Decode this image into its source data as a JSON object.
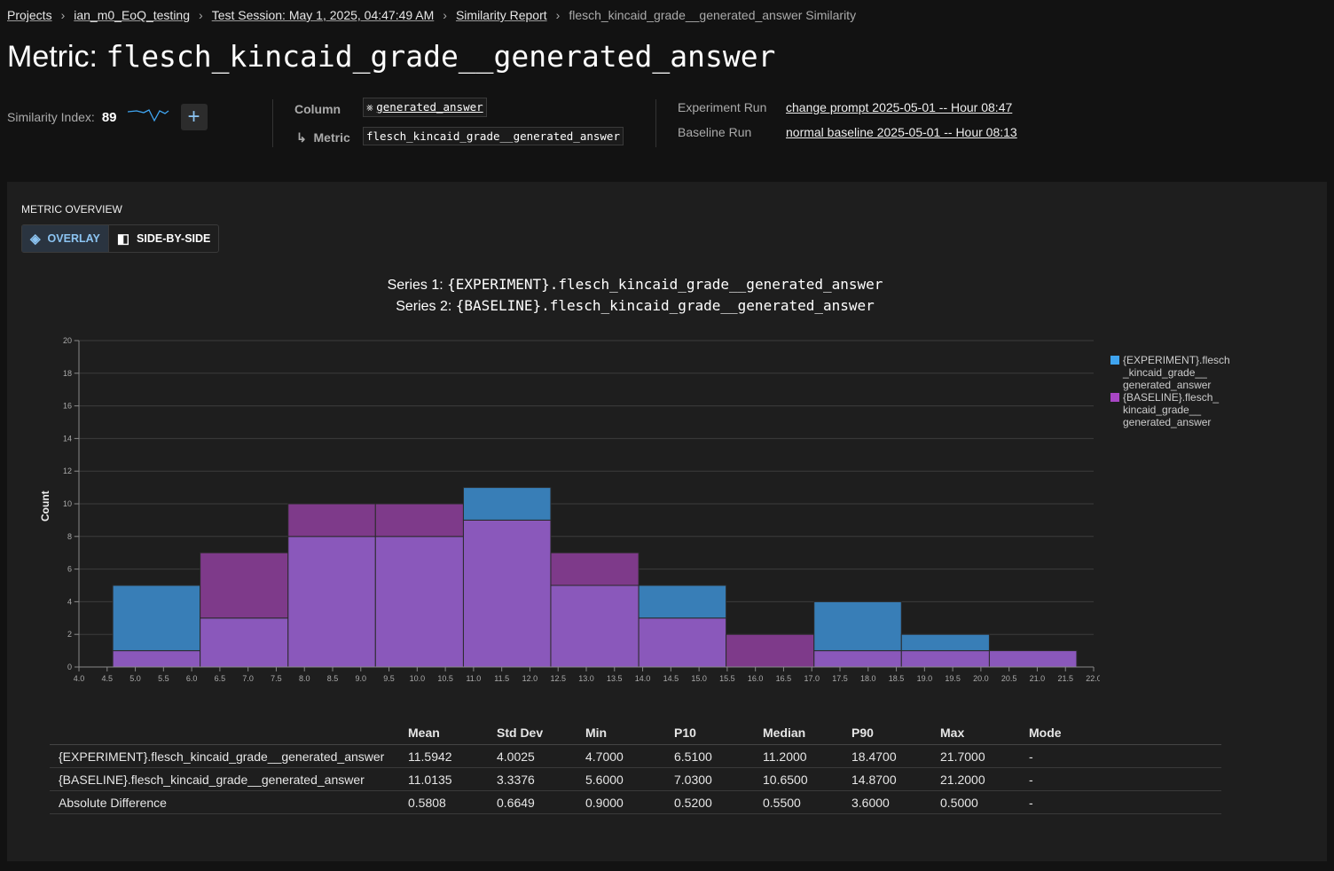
{
  "breadcrumb": [
    "Projects",
    "ian_m0_EoQ_testing",
    "Test Session: May 1, 2025, 04:47:49 AM",
    "Similarity Report"
  ],
  "breadcrumb_current": "flesch_kincaid_grade__generated_answer Similarity",
  "title_prefix": "Metric:",
  "title_metric": "flesch_kincaid_grade__generated_answer",
  "similarity": {
    "label": "Similarity Index:",
    "value": "89",
    "add_icon": "plus-icon"
  },
  "column": {
    "label": "Column",
    "value": "generated_answer",
    "metric_label": "Metric",
    "metric_value": "flesch_kincaid_grade__generated_answer"
  },
  "runs": {
    "experiment_label": "Experiment Run",
    "experiment_value": "change prompt 2025-05-01 -- Hour 08:47",
    "baseline_label": "Baseline Run",
    "baseline_value": "normal baseline 2025-05-01 -- Hour 08:13"
  },
  "overview": {
    "heading": "METRIC OVERVIEW",
    "overlay": "OVERLAY",
    "side_by_side": "SIDE-BY-SIDE",
    "active": "overlay"
  },
  "chart_data": {
    "type": "bar",
    "subtype": "overlaid histogram",
    "title_line1_prefix": "Series 1: ",
    "title_line1": "{EXPERIMENT}.flesch_kincaid_grade__generated_answer",
    "title_line2_prefix": "Series 2: ",
    "title_line2": "{BASELINE}.flesch_kincaid_grade__generated_answer",
    "ylabel": "Count",
    "xlim": [
      4.0,
      22.0
    ],
    "ylim": [
      0,
      20
    ],
    "x_ticks": [
      "4.0",
      "4.5",
      "5.0",
      "5.5",
      "6.0",
      "6.5",
      "7.0",
      "7.5",
      "8.0",
      "8.5",
      "9.0",
      "9.5",
      "10.0",
      "10.5",
      "11.0",
      "11.5",
      "12.0",
      "12.5",
      "13.0",
      "13.5",
      "14.0",
      "14.5",
      "15.0",
      "15.5",
      "16.0",
      "16.5",
      "17.0",
      "17.5",
      "18.0",
      "18.5",
      "19.0",
      "19.5",
      "20.0",
      "20.5",
      "21.0",
      "21.5",
      "22.0"
    ],
    "y_ticks": [
      "0",
      "2",
      "4",
      "6",
      "8",
      "10",
      "12",
      "14",
      "16",
      "18",
      "20"
    ],
    "bin_edges": [
      4.6,
      6.15,
      7.71,
      9.26,
      10.82,
      12.37,
      13.93,
      15.48,
      17.04,
      18.59,
      20.15,
      21.7
    ],
    "grid": true,
    "legend_position": "right",
    "series": [
      {
        "name": "{EXPERIMENT}.flesch_kincaid_grade__generated_answer",
        "legend": [
          "{EXPERIMENT}.flesch",
          "_kincaid_grade__",
          "generated_answer"
        ],
        "color": "#3fa4f0",
        "values": [
          5,
          3,
          8,
          8,
          11,
          5,
          5,
          0,
          4,
          2,
          1
        ]
      },
      {
        "name": "{BASELINE}.flesch_kincaid_grade__generated_answer",
        "legend": [
          "{BASELINE}.flesch_",
          "kincaid_grade__",
          "generated_answer"
        ],
        "color": "#a846c4",
        "values": [
          1,
          7,
          10,
          10,
          9,
          7,
          3,
          2,
          1,
          1,
          1
        ]
      }
    ]
  },
  "stats": {
    "headers": [
      "",
      "Mean",
      "Std Dev",
      "Min",
      "P10",
      "Median",
      "P90",
      "Max",
      "Mode"
    ],
    "rows": [
      [
        "{EXPERIMENT}.flesch_kincaid_grade__generated_answer",
        "11.5942",
        "4.0025",
        "4.7000",
        "6.5100",
        "11.2000",
        "18.4700",
        "21.7000",
        "-"
      ],
      [
        "{BASELINE}.flesch_kincaid_grade__generated_answer",
        "11.0135",
        "3.3376",
        "5.6000",
        "7.0300",
        "10.6500",
        "14.8700",
        "21.2000",
        "-"
      ],
      [
        "Absolute Difference",
        "0.5808",
        "0.6649",
        "0.9000",
        "0.5200",
        "0.5500",
        "3.6000",
        "0.5000",
        "-"
      ]
    ]
  }
}
